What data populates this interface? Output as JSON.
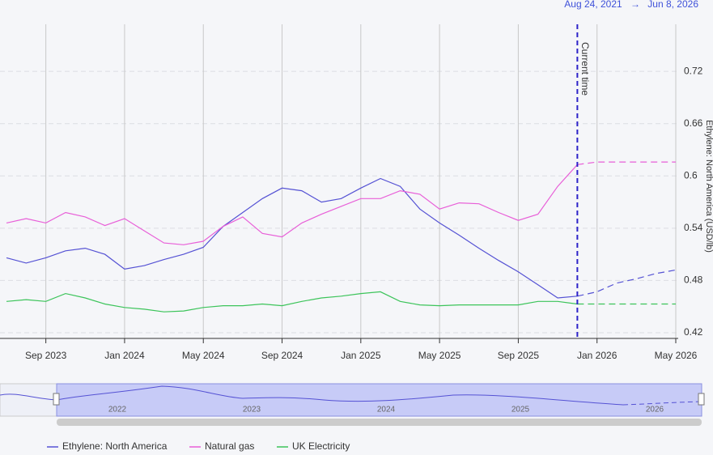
{
  "chart_data": {
    "type": "line",
    "range_start": "Aug 24, 2021",
    "range_end": "Jun 8, 2026",
    "annotation": "Current time",
    "current_time": "2025-12",
    "y_axis_label": "Ethylene: North America (USD/lb)",
    "x": [
      "2023-07",
      "2023-08",
      "2023-09",
      "2023-10",
      "2023-11",
      "2023-12",
      "2024-01",
      "2024-02",
      "2024-03",
      "2024-04",
      "2024-05",
      "2024-06",
      "2024-07",
      "2024-08",
      "2024-09",
      "2024-10",
      "2024-11",
      "2024-12",
      "2025-01",
      "2025-02",
      "2025-03",
      "2025-04",
      "2025-05",
      "2025-06",
      "2025-07",
      "2025-08",
      "2025-09",
      "2025-10",
      "2025-11",
      "2025-12",
      "2026-01",
      "2026-02",
      "2026-03",
      "2026-04",
      "2026-05"
    ],
    "xlim": [
      "2023-07",
      "2026-05"
    ],
    "xticks": [
      {
        "value": "2023-09",
        "label": "Sep 2023"
      },
      {
        "value": "2024-01",
        "label": "Jan 2024"
      },
      {
        "value": "2024-05",
        "label": "May 2024"
      },
      {
        "value": "2024-09",
        "label": "Sep 2024"
      },
      {
        "value": "2025-01",
        "label": "Jan 2025"
      },
      {
        "value": "2025-05",
        "label": "May 2025"
      },
      {
        "value": "2025-09",
        "label": "Sep 2025"
      },
      {
        "value": "2026-01",
        "label": "Jan 2026"
      },
      {
        "value": "2026-05",
        "label": "May 2026"
      }
    ],
    "ylim": [
      0.4135,
      0.774
    ],
    "yticks": [
      0.42,
      0.48,
      0.54,
      0.6,
      0.66,
      0.72
    ],
    "grid": true,
    "series": [
      {
        "name": "Ethylene: North America",
        "color": "#5552d4",
        "values": [
          0.506,
          0.5,
          0.506,
          0.514,
          0.517,
          0.51,
          0.493,
          0.497,
          0.504,
          0.51,
          0.518,
          0.542,
          0.558,
          0.574,
          0.586,
          0.583,
          0.57,
          0.574,
          0.586,
          0.597,
          0.588,
          0.562,
          0.546,
          0.532,
          0.517,
          0.503,
          0.49,
          0.475,
          0.46,
          0.462,
          0.467,
          0.477,
          0.482,
          0.488,
          0.492
        ]
      },
      {
        "name": "Natural gas",
        "color": "#e85fd8",
        "values": [
          0.546,
          0.551,
          0.546,
          0.558,
          0.553,
          0.543,
          0.551,
          0.537,
          0.523,
          0.521,
          0.525,
          0.542,
          0.553,
          0.534,
          0.53,
          0.546,
          0.556,
          0.565,
          0.574,
          0.574,
          0.583,
          0.579,
          0.562,
          0.569,
          0.568,
          0.558,
          0.549,
          0.556,
          0.588,
          0.613,
          0.616,
          0.616,
          0.616,
          0.616,
          0.616
        ]
      },
      {
        "name": "UK Electricity",
        "color": "#3cc45a",
        "values": [
          0.456,
          0.458,
          0.456,
          0.465,
          0.46,
          0.453,
          0.449,
          0.447,
          0.444,
          0.445,
          0.449,
          0.451,
          0.451,
          0.453,
          0.451,
          0.456,
          0.46,
          0.462,
          0.465,
          0.467,
          0.456,
          0.452,
          0.451,
          0.452,
          0.452,
          0.452,
          0.452,
          0.456,
          0.456,
          0.453,
          0.453,
          0.453,
          0.453,
          0.453,
          0.453
        ]
      }
    ],
    "navigator_labels": [
      "2022",
      "2023",
      "2024",
      "2025",
      "2026"
    ]
  }
}
